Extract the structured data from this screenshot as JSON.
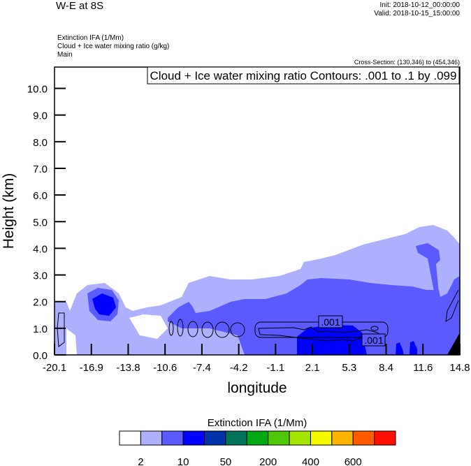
{
  "header": {
    "title": "W-E at 8S",
    "init": "Init: 2018-10-12_00:00:00",
    "valid": "Valid: 2018-10-15_15:00:00",
    "fields": [
      "Extinction IFA   (1/Mm)",
      "Cloud + Ice water mixing ratio   (g/kg)",
      "Main"
    ],
    "cross_section": "Cross-Section: (130,346) to (454,346)"
  },
  "chart_data": {
    "type": "heatmap",
    "title": "Cloud + Ice water mixing ratio Contours: .001 to .1 by .099",
    "xlabel": "longitude",
    "ylabel": "Height (km)",
    "xlim": [
      -20.1,
      14.8
    ],
    "ylim": [
      0,
      10.8
    ],
    "x_ticks": [
      "-20.1",
      "-16.9",
      "-13.8",
      "-10.6",
      "-7.4",
      "-4.2",
      "-1.1",
      "2.1",
      "5.3",
      "8.4",
      "11.6",
      "14.8"
    ],
    "y_ticks": [
      "0.0",
      "1.0",
      "2.0",
      "3.0",
      "4.0",
      "5.0",
      "6.0",
      "7.0",
      "8.0",
      "9.0",
      "10.0"
    ],
    "contour_labels": [
      ".001",
      ".001"
    ],
    "colorbar": {
      "title": "Extinction IFA  (1/Mm)",
      "colors": [
        "#ffffff",
        "#afafff",
        "#5a5aff",
        "#0000ff",
        "#0033aa",
        "#00735a",
        "#00a814",
        "#50c80a",
        "#a5e600",
        "#f5fa00",
        "#ffb400",
        "#ff5a00",
        "#ff0f00"
      ],
      "labels": [
        "2",
        "10",
        "50",
        "200",
        "400",
        "600"
      ]
    }
  }
}
